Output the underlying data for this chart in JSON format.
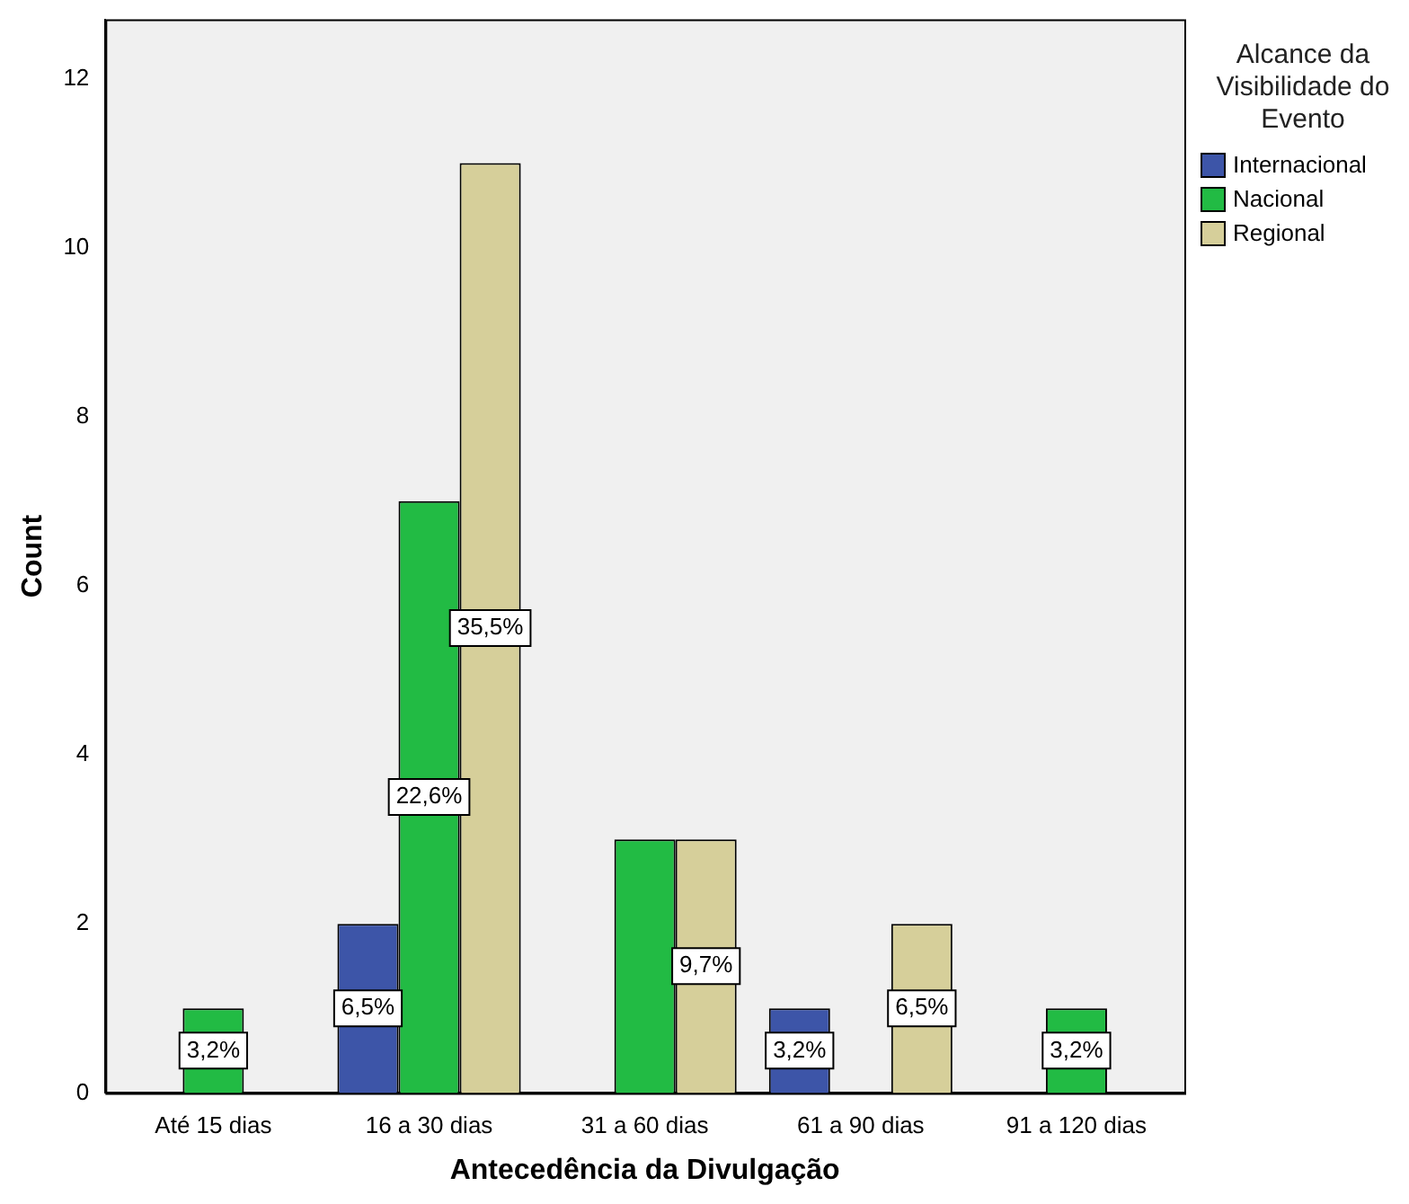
{
  "chart_data": {
    "type": "bar",
    "xlabel": "Antecedência da Divulgação",
    "ylabel": "Count",
    "legend_title": "Alcance da Visibilidade do Evento",
    "legend": "top right",
    "grid": false,
    "categories": [
      "Até 15 dias",
      "16 a 30 dias",
      "31 a 60 dias",
      "61 a 90 dias",
      "91 a 120 dias"
    ],
    "ylim": [
      0,
      12.7
    ],
    "yticks": [
      0,
      2,
      4,
      6,
      8,
      10,
      12
    ],
    "series": [
      {
        "name": "Internacional",
        "color": "#3d55a8",
        "values": [
          null,
          2,
          null,
          1,
          null
        ]
      },
      {
        "name": "Nacional",
        "color": "#22bb44",
        "values": [
          1,
          7,
          3,
          null,
          1
        ]
      },
      {
        "name": "Regional",
        "color": "#d6cf9a",
        "values": [
          null,
          11,
          3,
          2,
          null
        ]
      }
    ],
    "annotations": [
      "3,2%",
      "6,5%",
      "22,6%",
      "35,5%",
      "9,7%",
      "3,2%",
      "6,5%",
      "3,2%"
    ]
  }
}
